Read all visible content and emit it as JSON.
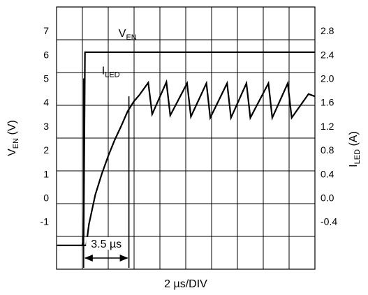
{
  "chart_data": {
    "type": "line",
    "x_scale_label": "2 µs/DIV",
    "x_unit": "µs",
    "x_range": [
      0,
      20
    ],
    "grid": true,
    "left_axis": {
      "label_main": "V",
      "label_sub": "EN",
      "label_unit": " (V)",
      "ticks": [
        7,
        6,
        5,
        4,
        3,
        2,
        1,
        0,
        -1
      ],
      "tick_labels": [
        "7",
        "6",
        "5",
        "4",
        "3",
        "2",
        "1",
        "0",
        "-1"
      ],
      "range": [
        -3,
        8
      ]
    },
    "right_axis": {
      "label_main": "I",
      "label_sub": "LED",
      "label_unit": " (A)",
      "ticks": [
        2.8,
        2.4,
        2.0,
        1.6,
        1.2,
        0.8,
        0.4,
        0.0,
        -0.4
      ],
      "tick_labels": [
        "2.8",
        "2.4",
        "2.0",
        "1.6",
        "1.2",
        "0.8",
        "0.4",
        "0.0",
        "-0.4"
      ],
      "range": [
        -1.2,
        3.2
      ]
    },
    "series": [
      {
        "name_main": "V",
        "name_sub": "EN",
        "axis": "left",
        "points": [
          [
            0,
            -2.0
          ],
          [
            2.0,
            -2.0
          ],
          [
            2.1,
            -1.6
          ],
          [
            2.2,
            6.1
          ],
          [
            4.0,
            6.1
          ],
          [
            8.0,
            6.1
          ],
          [
            12.0,
            6.1
          ],
          [
            16.0,
            6.1
          ],
          [
            20.0,
            6.1
          ]
        ]
      },
      {
        "name_main": "I",
        "name_sub": "LED",
        "axis": "right",
        "points": [
          [
            2.0,
            -0.8
          ],
          [
            2.3,
            -0.8
          ],
          [
            2.5,
            -0.45
          ],
          [
            3.0,
            0.05
          ],
          [
            3.5,
            0.4
          ],
          [
            4.0,
            0.7
          ],
          [
            4.5,
            0.97
          ],
          [
            5.0,
            1.2
          ],
          [
            5.5,
            1.45
          ],
          [
            6.0,
            1.62
          ],
          [
            6.4,
            1.72
          ],
          [
            7.1,
            1.93
          ],
          [
            7.4,
            1.4
          ],
          [
            8.5,
            1.94
          ],
          [
            8.8,
            1.38
          ],
          [
            10.1,
            1.92
          ],
          [
            10.4,
            1.36
          ],
          [
            11.6,
            1.92
          ],
          [
            11.9,
            1.34
          ],
          [
            13.2,
            1.92
          ],
          [
            13.5,
            1.34
          ],
          [
            14.7,
            1.92
          ],
          [
            15.0,
            1.34
          ],
          [
            16.4,
            1.92
          ],
          [
            16.7,
            1.34
          ],
          [
            17.9,
            1.92
          ],
          [
            18.2,
            1.34
          ],
          [
            19.5,
            1.74
          ],
          [
            20.0,
            1.7
          ]
        ]
      }
    ],
    "annotations": {
      "width_label": "3.5 µs",
      "width_start_x": 2.1,
      "width_end_x": 5.6,
      "ven_label_pos_x": 4.8,
      "iled_label_pos_x": 3.5
    }
  }
}
